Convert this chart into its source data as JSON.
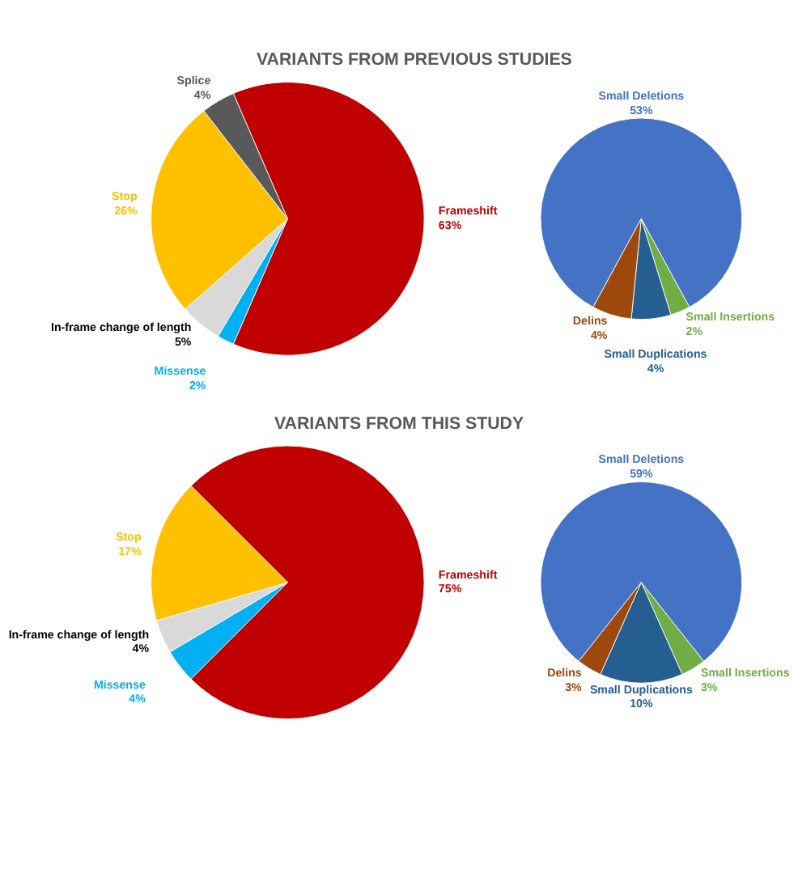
{
  "chart_data": [
    {
      "type": "pie",
      "title": "VARIANTS FROM PREVIOUS STUDIES",
      "categories": [
        "Frameshift",
        "Missense",
        "In-frame change of length",
        "Stop",
        "Splice"
      ],
      "values": [
        63,
        2,
        5,
        26,
        4
      ],
      "value_labels": [
        "63%",
        "2%",
        "5%",
        "26%",
        "4%"
      ],
      "colors": [
        "#c00000",
        "#00b0f0",
        "#d9d9d9",
        "#ffc000",
        "#595959"
      ],
      "legend": false
    },
    {
      "type": "pie",
      "categories": [
        "Small Deletions",
        "Small Insertions",
        "Small Duplications",
        "Delins"
      ],
      "values": [
        53,
        2,
        4,
        4
      ],
      "value_labels": [
        "53%",
        "2%",
        "4%",
        "4%"
      ],
      "colors": [
        "#4472c4",
        "#70ad47",
        "#255e91",
        "#9e480e"
      ],
      "legend": false
    },
    {
      "type": "pie",
      "title": "VARIANTS FROM THIS STUDY",
      "categories": [
        "Frameshift",
        "Missense",
        "In-frame change of length",
        "Stop"
      ],
      "values": [
        75,
        4,
        4,
        17
      ],
      "value_labels": [
        "75%",
        "4%",
        "4%",
        "17%"
      ],
      "colors": [
        "#c00000",
        "#00b0f0",
        "#d9d9d9",
        "#ffc000"
      ],
      "legend": false
    },
    {
      "type": "pie",
      "categories": [
        "Small Deletions",
        "Small Insertions",
        "Small Duplications",
        "Delins"
      ],
      "values": [
        59,
        3,
        10,
        3
      ],
      "value_labels": [
        "59%",
        "3%",
        "10%",
        "3%"
      ],
      "colors": [
        "#4472c4",
        "#70ad47",
        "#255e91",
        "#9e480e"
      ],
      "legend": false
    }
  ]
}
